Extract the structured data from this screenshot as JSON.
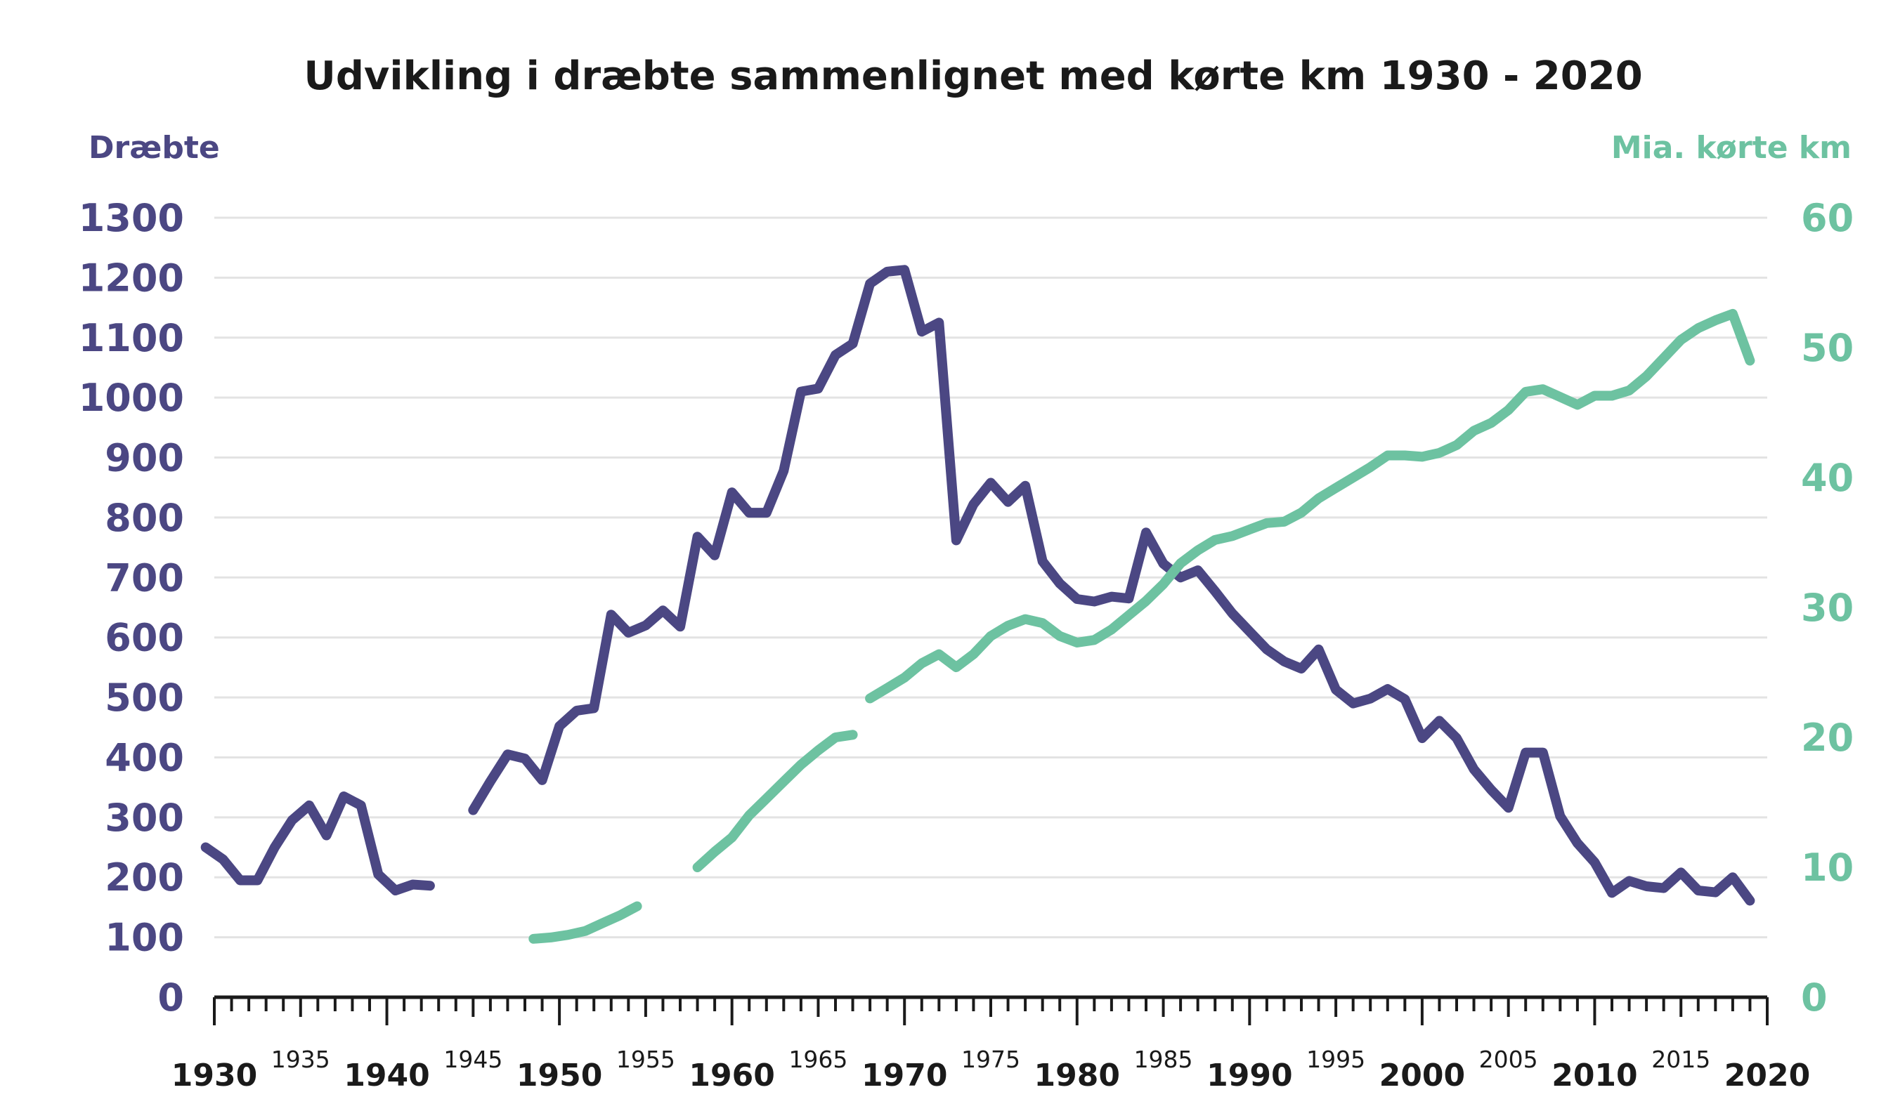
{
  "colors": {
    "killed": "#4b4783",
    "km": "#6dc2a1",
    "text": "#1a1a1a",
    "grid": "#e3e3e3"
  },
  "chart_data": {
    "type": "line",
    "title": "Udvikling i dræbte sammenlignet med kørte km 1930 - 2020",
    "left_axis_label": "Dræbte",
    "right_axis_label": "Mia. kørte km",
    "xlim": [
      1930,
      2020
    ],
    "ylim_left": [
      0,
      1300
    ],
    "ylim_right": [
      0,
      60
    ],
    "left_ticks": [
      "0",
      "100",
      "200",
      "300",
      "400",
      "500",
      "600",
      "700",
      "800",
      "900",
      "1000",
      "1100",
      "1200",
      "1300"
    ],
    "right_ticks": [
      "0",
      "10",
      "20",
      "30",
      "40",
      "50",
      "60"
    ],
    "x_major_ticks": [
      "1930",
      "1940",
      "1950",
      "1960",
      "1970",
      "1980",
      "1990",
      "2000",
      "2010",
      "2020"
    ],
    "x_minor_ticks": [
      "1935",
      "1945",
      "1955",
      "1965",
      "1975",
      "1985",
      "1995",
      "2005",
      "2015"
    ],
    "grid": true,
    "series": [
      {
        "axis": "left",
        "color": "#4b4783",
        "segments": [
          {
            "x": [
              1929.5,
              1930.5,
              1931.5,
              1932.5,
              1933.5,
              1934.5,
              1935.5,
              1936.5,
              1937.5,
              1938.5,
              1939.5,
              1940.5,
              1941.5,
              1942.5
            ],
            "y": [
              250,
              230,
              195,
              195,
              250,
              295,
              320,
              270,
              335,
              320,
              205,
              178,
              188,
              186
            ]
          },
          {
            "x": [
              1945,
              1946,
              1947,
              1948,
              1949,
              1950,
              1951,
              1952,
              1953,
              1954,
              1955,
              1956,
              1957,
              1958,
              1959,
              1960,
              1961,
              1962,
              1963,
              1964,
              1965,
              1966,
              1967,
              1968,
              1969,
              1970,
              1971,
              1972,
              1973,
              1974,
              1975,
              1976,
              1977,
              1978,
              1979,
              1980,
              1981,
              1982,
              1983,
              1984,
              1985,
              1986,
              1987,
              1988,
              1989,
              1990,
              1991,
              1992,
              1993,
              1994,
              1995,
              1996,
              1997,
              1998,
              1999,
              2000,
              2001,
              2002,
              2003,
              2004,
              2005,
              2006,
              2007,
              2008,
              2009,
              2010,
              2011,
              2012,
              2013,
              2014,
              2015,
              2016,
              2017,
              2018,
              2019
            ],
            "y": [
              312,
              360,
              405,
              398,
              362,
              452,
              478,
              482,
              638,
              608,
              620,
              645,
              618,
              768,
              737,
              842,
              808,
              808,
              878,
              1010,
              1015,
              1071,
              1090,
              1190,
              1210,
              1213,
              1110,
              1125,
              762,
              822,
              858,
              826,
              853,
              727,
              690,
              664,
              660,
              668,
              665,
              775,
              723,
              700,
              712,
              677,
              640,
              610,
              580,
              560,
              548,
              580,
              513,
              490,
              498,
              514,
              497,
              432,
              461,
              432,
              380,
              346,
              316,
              408,
              408,
              302,
              257,
              225,
              174,
              194,
              185,
              182,
              208,
              178,
              175,
              200,
              161
            ]
          }
        ]
      },
      {
        "axis": "right",
        "color": "#6dc2a1",
        "segments": [
          {
            "x": [
              1948.5,
              1949.5,
              1950.5,
              1951.5,
              1952.5,
              1953.5,
              1954.5
            ],
            "y": [
              4.5,
              4.6,
              4.8,
              5.1,
              5.7,
              6.3,
              7.0
            ]
          },
          {
            "x": [
              1958,
              1959,
              1960,
              1961,
              1962,
              1963,
              1964,
              1965,
              1966,
              1967
            ],
            "y": [
              10.0,
              11.2,
              12.3,
              14.0,
              15.3,
              16.6,
              17.9,
              19.0,
              20.0,
              20.2
            ]
          },
          {
            "x": [
              1968,
              1969,
              1970,
              1971,
              1972,
              1973,
              1974,
              1975,
              1976,
              1977,
              1978,
              1979,
              1980,
              1981,
              1982,
              1983,
              1984,
              1985,
              1986,
              1987,
              1988,
              1989,
              1990,
              1991,
              1992,
              1993,
              1994,
              1995,
              1996,
              1997,
              1998,
              1999,
              2000,
              2001,
              2002,
              2003,
              2004,
              2005,
              2006,
              2007,
              2008,
              2009,
              2010,
              2011,
              2012,
              2013,
              2014,
              2015,
              2016,
              2017,
              2018,
              2019
            ],
            "y": [
              23.0,
              23.8,
              24.6,
              25.7,
              26.4,
              25.4,
              26.4,
              27.8,
              28.6,
              29.1,
              28.8,
              27.8,
              27.3,
              27.5,
              28.3,
              29.4,
              30.5,
              31.8,
              33.4,
              34.4,
              35.2,
              35.5,
              36.0,
              36.5,
              36.6,
              37.3,
              38.4,
              39.2,
              40.0,
              40.8,
              41.7,
              41.7,
              41.6,
              41.9,
              42.5,
              43.6,
              44.2,
              45.2,
              46.6,
              46.8,
              46.2,
              45.6,
              46.3,
              46.3,
              46.7,
              47.8,
              49.2,
              50.6,
              51.5,
              52.1,
              52.6,
              49.0
            ]
          }
        ]
      }
    ]
  }
}
